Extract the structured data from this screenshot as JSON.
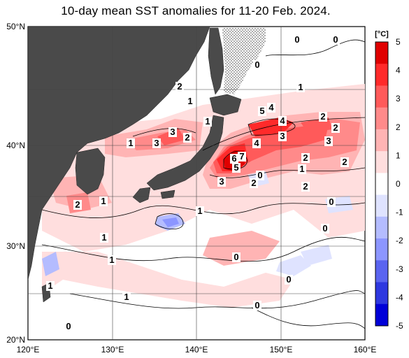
{
  "map": {
    "title": "10-day mean SST anomalies for 11-20 Feb. 2024.",
    "lon_ticks": [
      "120°E",
      "130°E",
      "140°E",
      "150°E",
      "160°E"
    ],
    "lat_ticks": [
      "50°N",
      "40°N",
      "30°N",
      "20°N"
    ],
    "colorbar": {
      "unit": "[°C]",
      "ticks": [
        "5",
        "4",
        "3",
        "2",
        "1",
        "0",
        "-1",
        "-2",
        "-3",
        "-4",
        "-5"
      ],
      "colors": [
        "#e00000",
        "#ff2a2a",
        "#ff5a5a",
        "#ff8a8a",
        "#ffb4b4",
        "#ffdede",
        "#ffffff",
        "#dfe3ff",
        "#b4bcff",
        "#8c96ff",
        "#5a64f0",
        "#2e38e0",
        "#0000d8"
      ]
    },
    "contour_labels": [
      "0",
      "0",
      "0",
      "2",
      "1",
      "1",
      "1",
      "3",
      "3",
      "2",
      "1",
      "5",
      "4",
      "4",
      "3",
      "2",
      "2",
      "4",
      "3",
      "2",
      "6",
      "7",
      "5",
      "3",
      "2",
      "0",
      "2",
      "1",
      "2",
      "0",
      "2",
      "1",
      "1",
      "0",
      "1",
      "1",
      "0",
      "1",
      "0",
      "0",
      "1",
      "0",
      "0"
    ],
    "land_color": "#4a4a4a",
    "sea_ice_pattern": "dotted"
  }
}
